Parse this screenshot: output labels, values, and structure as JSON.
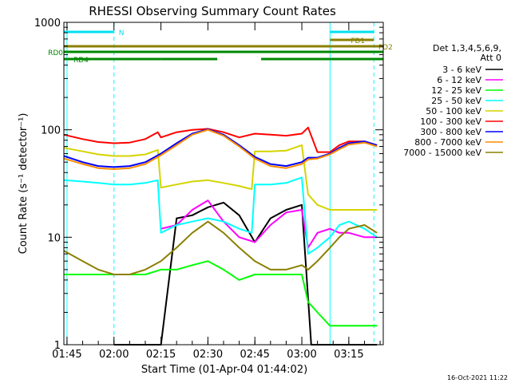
{
  "chart_data": {
    "type": "line",
    "title": "RHESSI Observing Summary Count Rates",
    "xlabel": "Start Time (01-Apr-04 01:44:02)",
    "ylabel": "Count Rate (s⁻¹ detector⁻¹)",
    "yscale": "log",
    "xlim_minutes": [
      -1,
      101
    ],
    "ylim": [
      1,
      1000
    ],
    "x_ticks": [
      {
        "m": 0,
        "label": "01:45"
      },
      {
        "m": 15,
        "label": "02:00"
      },
      {
        "m": 30,
        "label": "02:15"
      },
      {
        "m": 45,
        "label": "02:30"
      },
      {
        "m": 60,
        "label": "02:45"
      },
      {
        "m": 75,
        "label": "03:00"
      },
      {
        "m": 90,
        "label": "03:15"
      }
    ],
    "y_ticks": [
      {
        "v": 1,
        "label": "1"
      },
      {
        "v": 10,
        "label": "10"
      },
      {
        "v": 100,
        "label": "100"
      },
      {
        "v": 1000,
        "label": "1000"
      }
    ],
    "legend": {
      "placement": "right",
      "header": [
        "Det 1,3,4,5,6,9,",
        "Att 0"
      ]
    },
    "series": [
      {
        "name": "3 - 6 keV",
        "color": "#000000",
        "x": [
          -1,
          14,
          15,
          20,
          25,
          30,
          35,
          40,
          45,
          50,
          55,
          60,
          65,
          70,
          75,
          78,
          80,
          84,
          87,
          90,
          95,
          99
        ],
        "y": [
          null,
          null,
          1,
          1,
          1,
          1,
          15,
          16,
          19,
          21,
          16,
          9,
          15,
          18,
          20,
          1,
          1,
          1,
          1,
          1,
          1,
          1
        ]
      },
      {
        "name": "6 - 12 keV",
        "color": "#ff00ff",
        "x": [
          -1,
          5,
          10,
          15,
          20,
          25,
          30,
          35,
          40,
          45,
          50,
          55,
          60,
          65,
          70,
          75,
          77,
          80,
          84,
          87,
          90,
          95,
          99
        ],
        "y": [
          null,
          null,
          null,
          null,
          null,
          null,
          12,
          13,
          18,
          22,
          14,
          10,
          9,
          13,
          17,
          18,
          8,
          11,
          12,
          11,
          11,
          10,
          10
        ]
      },
      {
        "name": "12 - 25 keV",
        "color": "#00ff00",
        "x": [
          -1,
          5,
          10,
          15,
          20,
          25,
          30,
          35,
          40,
          45,
          50,
          55,
          60,
          65,
          70,
          75,
          77,
          80,
          84,
          87,
          90,
          95,
          99
        ],
        "y": [
          4.5,
          4.5,
          4.5,
          4.5,
          4.5,
          4.5,
          5,
          5,
          5.5,
          6,
          5,
          4,
          4.5,
          4.5,
          4.5,
          4.5,
          2.5,
          2,
          1.5,
          1.5,
          1.5,
          1.5,
          1.5
        ]
      },
      {
        "name": "25 - 50 keV",
        "color": "#00ffff",
        "x": [
          -1,
          5,
          10,
          15,
          20,
          25,
          29,
          30,
          35,
          40,
          45,
          50,
          55,
          59,
          60,
          65,
          70,
          75,
          77,
          80,
          84,
          87,
          90,
          95,
          99
        ],
        "y": [
          34,
          33,
          32,
          31,
          31,
          32,
          34,
          11,
          13,
          14,
          15,
          14,
          12,
          11,
          31,
          31,
          32,
          36,
          7,
          8,
          10,
          13,
          14,
          12,
          10
        ]
      },
      {
        "name": "50 - 100 keV",
        "color": "#d4d400",
        "x": [
          -1,
          5,
          10,
          15,
          20,
          25,
          29,
          30,
          35,
          40,
          45,
          50,
          55,
          59,
          60,
          65,
          70,
          75,
          77,
          80,
          84,
          87,
          90,
          95,
          99
        ],
        "y": [
          68,
          63,
          59,
          57,
          57,
          59,
          65,
          29,
          31,
          33,
          34,
          32,
          30,
          28,
          63,
          63,
          64,
          72,
          25,
          20,
          18,
          18,
          18,
          18,
          18
        ]
      },
      {
        "name": "100 - 300 keV",
        "color": "#ff0000",
        "x": [
          -1,
          5,
          10,
          15,
          20,
          25,
          29,
          30,
          35,
          40,
          45,
          50,
          55,
          60,
          65,
          70,
          75,
          77,
          80,
          84,
          87,
          90,
          95,
          99
        ],
        "y": [
          90,
          82,
          77,
          75,
          76,
          82,
          95,
          85,
          95,
          100,
          102,
          95,
          85,
          92,
          90,
          88,
          92,
          105,
          62,
          62,
          72,
          78,
          78,
          72
        ]
      },
      {
        "name": "300 - 800 keV",
        "color": "#0000ff",
        "x": [
          -1,
          5,
          10,
          15,
          20,
          25,
          30,
          35,
          40,
          45,
          50,
          55,
          60,
          65,
          70,
          75,
          77,
          80,
          84,
          87,
          90,
          95,
          99
        ],
        "y": [
          57,
          50,
          46,
          45,
          46,
          50,
          60,
          75,
          92,
          101,
          90,
          72,
          56,
          48,
          46,
          50,
          55,
          55,
          60,
          68,
          75,
          78,
          72
        ]
      },
      {
        "name": "800 - 7000 keV",
        "color": "#ff8c00",
        "x": [
          -1,
          5,
          10,
          15,
          20,
          25,
          30,
          35,
          40,
          45,
          50,
          55,
          60,
          65,
          70,
          75,
          77,
          80,
          84,
          87,
          90,
          95,
          99
        ],
        "y": [
          54,
          48,
          44,
          43,
          44,
          48,
          58,
          72,
          90,
          100,
          88,
          70,
          54,
          46,
          44,
          48,
          53,
          54,
          59,
          66,
          73,
          76,
          70
        ]
      },
      {
        "name": "7000 - 15000 keV",
        "color": "#8b8000",
        "x": [
          -1,
          5,
          10,
          15,
          20,
          25,
          30,
          35,
          40,
          45,
          50,
          55,
          60,
          65,
          70,
          75,
          77,
          80,
          84,
          87,
          90,
          95,
          99
        ],
        "y": [
          7.5,
          6,
          5,
          4.5,
          4.5,
          5,
          6,
          8,
          11,
          14,
          11,
          8,
          6,
          5,
          5,
          5.5,
          5,
          6,
          8,
          10,
          12,
          13,
          11
        ]
      }
    ],
    "state_bars": [
      {
        "label": "N",
        "color": "#00e0f0",
        "segments": [
          [
            -1,
            15
          ],
          [
            84,
            98
          ]
        ]
      },
      {
        "label": "FD1",
        "color": "#8b8000",
        "segments": [
          [
            84,
            98
          ]
        ]
      },
      {
        "label": "FD2",
        "color": "#8b8000",
        "segments": [
          [
            -1,
            101
          ]
        ]
      },
      {
        "label": "RD0",
        "color": "#008800",
        "segments": [
          [
            -1,
            101
          ]
        ]
      },
      {
        "label": "RD4",
        "color": "#008800",
        "segments": [
          [
            -1,
            30
          ],
          [
            30,
            48
          ],
          [
            62,
            84
          ],
          [
            84,
            101
          ]
        ]
      }
    ],
    "vlines": [
      {
        "m": 0,
        "color": "#00ffff",
        "dash": false
      },
      {
        "m": 15,
        "color": "#00ffff",
        "dash": true
      },
      {
        "m": 84,
        "color": "#00ffff",
        "dash": false
      },
      {
        "m": 98,
        "color": "#00ffff",
        "dash": true
      }
    ]
  },
  "footer": {
    "date": "16-Oct-2021 11:22"
  }
}
